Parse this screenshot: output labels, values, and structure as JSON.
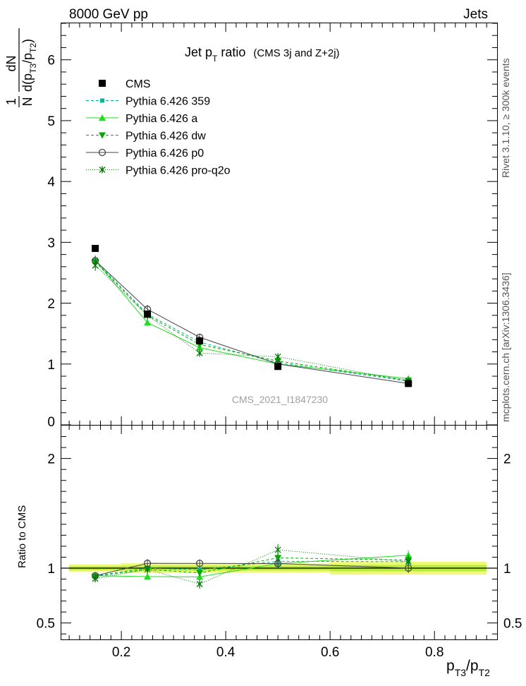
{
  "header": {
    "left": "8000 GeV pp",
    "right": "Jets"
  },
  "side_labels": {
    "rivet": "Rivet 3.1.10, ≥ 300k events",
    "site": "mcplots.cern.ch [arXiv:1306.3436]"
  },
  "colors": {
    "cms": "#000000",
    "p359": "#00b890",
    "a": "#22dd22",
    "dw": "#00aa00",
    "p0": "#444444",
    "proq2o": "#007a00",
    "band_outer": "#f0f878",
    "band_inner": "#b8ec40"
  },
  "chart_data": {
    "type": "line",
    "title": {
      "main": "Jet p",
      "main_sub": "T",
      "main_tail": " ratio",
      "detail": "(CMS 3j and Z+2j)"
    },
    "watermark": "CMS_2021_I1847230",
    "ylabel": {
      "frac_num": "1",
      "frac_den": "N",
      "deriv_num": "dN",
      "deriv_den_d": "d(p",
      "deriv_den_sub1": "T3",
      "deriv_den_slash": "/p",
      "deriv_den_sub2": "T2",
      "deriv_den_close": ")"
    },
    "ratio_ylabel": "Ratio to CMS",
    "xlabel": {
      "p1": "p",
      "s1": "T3",
      "slash": "/p",
      "s2": "T2"
    },
    "xlim": [
      0.085,
      0.92
    ],
    "ylim_main": [
      0,
      6.6
    ],
    "ylim_ratio": [
      0.35,
      2.3
    ],
    "xticks": [
      0.2,
      0.4,
      0.6,
      0.8
    ],
    "xtick_labels": [
      "0.2",
      "0.4",
      "0.6",
      "0.8"
    ],
    "yticks_main": [
      0,
      1,
      2,
      3,
      4,
      5,
      6
    ],
    "ytick_labels_main": [
      "0",
      "1",
      "2",
      "3",
      "4",
      "5",
      "6"
    ],
    "yticks_ratio": [
      0.5,
      1,
      2
    ],
    "ytick_labels_ratio": [
      "0.5",
      "1",
      "2"
    ],
    "x": [
      0.15,
      0.25,
      0.35,
      0.5,
      0.75
    ],
    "x_edges": [
      0.1,
      0.2,
      0.3,
      0.4,
      0.6,
      0.9
    ],
    "series": [
      {
        "key": "cms",
        "name": "CMS",
        "marker": "square",
        "dash": "",
        "values": [
          2.9,
          1.82,
          1.38,
          0.96,
          0.68
        ],
        "errors": [
          0.05,
          0.04,
          0.03,
          0.02,
          0.02
        ]
      },
      {
        "key": "p359",
        "name": "Pythia 6.426 359",
        "marker": "smallsquare",
        "dash": "4,3",
        "values": [
          2.7,
          1.82,
          1.36,
          1.02,
          0.72
        ],
        "errors": [
          0.08,
          0.06,
          0.05,
          0.04,
          0.03
        ]
      },
      {
        "key": "a",
        "name": "Pythia 6.426 a",
        "marker": "triangle-up",
        "dash": "",
        "values": [
          2.7,
          1.68,
          1.27,
          1.0,
          0.76
        ],
        "errors": [
          0.08,
          0.06,
          0.05,
          0.04,
          0.03
        ]
      },
      {
        "key": "dw",
        "name": "Pythia 6.426 dw",
        "marker": "triangle-down",
        "dash": "4,3",
        "values": [
          2.68,
          1.8,
          1.32,
          1.05,
          0.73
        ],
        "errors": [
          0.08,
          0.06,
          0.05,
          0.04,
          0.03
        ]
      },
      {
        "key": "p0",
        "name": "Pythia 6.426 p0",
        "marker": "circle-open",
        "dash": "",
        "values": [
          2.7,
          1.9,
          1.44,
          1.0,
          0.68
        ],
        "errors": [
          0.08,
          0.07,
          0.05,
          0.04,
          0.03
        ]
      },
      {
        "key": "proq2o",
        "name": "Pythia 6.426 pro-q2o",
        "marker": "star",
        "dash": "1,2",
        "values": [
          2.62,
          1.8,
          1.18,
          1.12,
          0.72
        ],
        "errors": [
          0.09,
          0.07,
          0.06,
          0.05,
          0.04
        ]
      }
    ]
  }
}
